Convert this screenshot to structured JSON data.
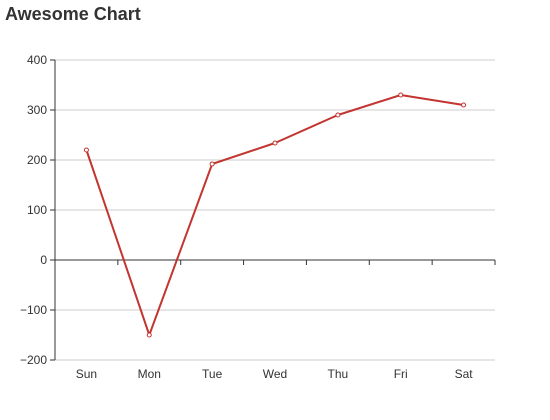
{
  "chart_data": {
    "type": "line",
    "title": "Awesome Chart",
    "categories": [
      "Sun",
      "Mon",
      "Tue",
      "Wed",
      "Thu",
      "Fri",
      "Sat"
    ],
    "series": [
      {
        "values": [
          220,
          -150,
          192,
          234,
          290,
          330,
          310
        ],
        "color": "#c23531"
      }
    ],
    "ylim": [
      -200,
      400
    ],
    "yticks": [
      -200,
      -100,
      0,
      100,
      200,
      300,
      400
    ],
    "ytick_labels": [
      "−200",
      "−100",
      "0",
      "100",
      "200",
      "300",
      "400"
    ],
    "grid": true,
    "xlabel": "",
    "ylabel": ""
  }
}
